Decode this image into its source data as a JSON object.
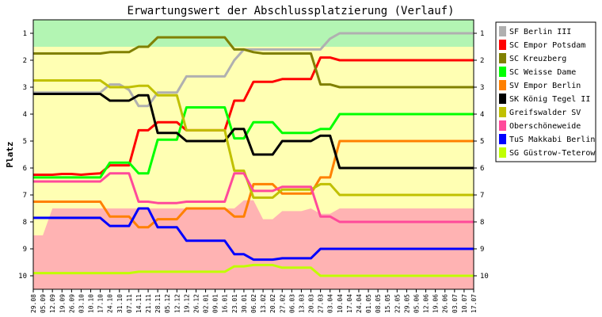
{
  "chart_data": {
    "type": "line",
    "title": "Erwartungswert der Abschlussplatzierung (Verlauf)",
    "ylabel": "Platz",
    "yticks": [
      1,
      2,
      3,
      4,
      5,
      6,
      7,
      8,
      9,
      10
    ],
    "ylim": [
      10.5,
      0.5
    ],
    "y_inverted": true,
    "x": [
      "29.08",
      "05.09",
      "12.09",
      "19.09",
      "26.09",
      "03.10",
      "10.10",
      "17.10",
      "24.10",
      "31.10",
      "07.11",
      "14.11",
      "21.11",
      "28.11",
      "05.12",
      "12.12",
      "19.12",
      "26.12",
      "02.01",
      "09.01",
      "16.01",
      "23.01",
      "30.01",
      "06.02",
      "13.02",
      "20.02",
      "27.02",
      "06.03",
      "13.03",
      "20.03",
      "27.03",
      "03.04",
      "10.04",
      "17.04",
      "24.04",
      "01.05",
      "08.05",
      "15.05",
      "22.05",
      "29.05",
      "05.06",
      "12.06",
      "19.06",
      "26.06",
      "03.07",
      "10.07",
      "17.07"
    ],
    "background_bands": [
      {
        "name": "aufstieg",
        "color": "#b3f5b3"
      },
      {
        "name": "mitte",
        "color": "#ffffb3"
      },
      {
        "name": "abstieg",
        "color": "#ffb3b3"
      }
    ],
    "zone_boundaries": {
      "green_lower": [
        1.5,
        1.5,
        1.5,
        1.5,
        1.5,
        1.5,
        1.5,
        1.5,
        1.5,
        1.5,
        1.5,
        1.5,
        1.5,
        1.5,
        1.5,
        1.5,
        1.5,
        1.5,
        1.5,
        1.5,
        1.5,
        1.5,
        1.5,
        1.5,
        1.5,
        1.5,
        1.5,
        1.5,
        1.5,
        1.5,
        1.5,
        1.5,
        1.5,
        1.5,
        1.5,
        1.5,
        1.5,
        1.5,
        1.5,
        1.5,
        1.5,
        1.5,
        1.5,
        1.5,
        1.5,
        1.5,
        1.5
      ],
      "red_upper": [
        8.5,
        8.5,
        7.5,
        7.5,
        7.5,
        7.5,
        7.5,
        7.5,
        7.5,
        7.5,
        7.5,
        7.5,
        7.5,
        7.5,
        7.5,
        7.5,
        7.5,
        7.5,
        7.5,
        7.5,
        7.5,
        7.5,
        7.2,
        7.2,
        7.9,
        7.9,
        7.6,
        7.6,
        7.6,
        7.5,
        7.7,
        7.7,
        7.5,
        7.5,
        7.5,
        7.5,
        7.5,
        7.5,
        7.5,
        7.5,
        7.5,
        7.5,
        7.5,
        7.5,
        7.5,
        7.5,
        7.5
      ]
    },
    "series": [
      {
        "name": "SF Berlin III",
        "color": "#b0b0b0",
        "values": [
          3.2,
          3.2,
          3.2,
          3.2,
          3.2,
          3.2,
          3.2,
          3.2,
          2.9,
          2.9,
          3.1,
          3.7,
          3.7,
          3.2,
          3.2,
          3.2,
          2.6,
          2.6,
          2.6,
          2.6,
          2.6,
          2.0,
          1.6,
          1.6,
          1.6,
          1.6,
          1.6,
          1.6,
          1.6,
          1.6,
          1.6,
          1.2,
          1.0,
          1.0,
          1.0,
          1.0,
          1.0,
          1.0,
          1.0,
          1.0,
          1.0,
          1.0,
          1.0,
          1.0,
          1.0,
          1.0,
          1.0
        ]
      },
      {
        "name": "SC Empor Potsdam",
        "color": "#ff0000",
        "values": [
          6.25,
          6.25,
          6.25,
          6.22,
          6.22,
          6.25,
          6.22,
          6.2,
          5.9,
          5.9,
          5.9,
          4.6,
          4.6,
          4.3,
          4.3,
          4.3,
          4.6,
          4.6,
          4.6,
          4.6,
          4.6,
          3.5,
          3.5,
          2.8,
          2.8,
          2.8,
          2.7,
          2.7,
          2.7,
          2.7,
          1.9,
          1.9,
          2.0,
          2.0,
          2.0,
          2.0,
          2.0,
          2.0,
          2.0,
          2.0,
          2.0,
          2.0,
          2.0,
          2.0,
          2.0,
          2.0,
          2.0
        ]
      },
      {
        "name": "SC Kreuzberg",
        "color": "#808000",
        "values": [
          1.75,
          1.75,
          1.75,
          1.75,
          1.75,
          1.75,
          1.75,
          1.75,
          1.7,
          1.7,
          1.7,
          1.5,
          1.5,
          1.15,
          1.15,
          1.15,
          1.15,
          1.15,
          1.15,
          1.15,
          1.15,
          1.6,
          1.6,
          1.7,
          1.75,
          1.75,
          1.75,
          1.75,
          1.75,
          1.75,
          2.9,
          2.9,
          3.0,
          3.0,
          3.0,
          3.0,
          3.0,
          3.0,
          3.0,
          3.0,
          3.0,
          3.0,
          3.0,
          3.0,
          3.0,
          3.0,
          3.0
        ]
      },
      {
        "name": "SC Weisse Dame",
        "color": "#00ff00",
        "values": [
          6.35,
          6.35,
          6.35,
          6.35,
          6.35,
          6.35,
          6.35,
          6.35,
          5.8,
          5.8,
          5.8,
          6.2,
          6.2,
          4.95,
          4.95,
          4.95,
          3.75,
          3.75,
          3.75,
          3.75,
          3.75,
          4.9,
          4.9,
          4.3,
          4.3,
          4.3,
          4.7,
          4.7,
          4.7,
          4.7,
          4.55,
          4.55,
          4.0,
          4.0,
          4.0,
          4.0,
          4.0,
          4.0,
          4.0,
          4.0,
          4.0,
          4.0,
          4.0,
          4.0,
          4.0,
          4.0,
          4.0
        ]
      },
      {
        "name": "SV Empor Berlin",
        "color": "#ff8000",
        "values": [
          7.25,
          7.25,
          7.25,
          7.25,
          7.25,
          7.25,
          7.25,
          7.25,
          7.8,
          7.8,
          7.8,
          8.2,
          8.2,
          7.9,
          7.9,
          7.9,
          7.5,
          7.5,
          7.5,
          7.5,
          7.5,
          7.8,
          7.8,
          6.6,
          6.6,
          6.6,
          6.95,
          6.95,
          6.95,
          6.95,
          6.35,
          6.35,
          5.0,
          5.0,
          5.0,
          5.0,
          5.0,
          5.0,
          5.0,
          5.0,
          5.0,
          5.0,
          5.0,
          5.0,
          5.0,
          5.0,
          5.0
        ]
      },
      {
        "name": "SK König Tegel II",
        "color": "#000000",
        "values": [
          3.25,
          3.25,
          3.25,
          3.25,
          3.25,
          3.25,
          3.25,
          3.25,
          3.5,
          3.5,
          3.5,
          3.3,
          3.3,
          4.7,
          4.7,
          4.7,
          5.0,
          5.0,
          5.0,
          5.0,
          5.0,
          4.55,
          4.55,
          5.5,
          5.5,
          5.5,
          5.0,
          5.0,
          5.0,
          5.0,
          4.8,
          4.8,
          6.0,
          6.0,
          6.0,
          6.0,
          6.0,
          6.0,
          6.0,
          6.0,
          6.0,
          6.0,
          6.0,
          6.0,
          6.0,
          6.0,
          6.0
        ]
      },
      {
        "name": "Greifswalder SV",
        "color": "#c0c000",
        "values": [
          2.75,
          2.75,
          2.75,
          2.75,
          2.75,
          2.75,
          2.75,
          2.75,
          3.0,
          3.0,
          3.0,
          2.95,
          2.95,
          3.3,
          3.3,
          3.3,
          4.6,
          4.6,
          4.6,
          4.6,
          4.6,
          6.1,
          6.1,
          7.1,
          7.1,
          7.1,
          6.8,
          6.8,
          6.8,
          6.8,
          6.6,
          6.6,
          7.0,
          7.0,
          7.0,
          7.0,
          7.0,
          7.0,
          7.0,
          7.0,
          7.0,
          7.0,
          7.0,
          7.0,
          7.0,
          7.0,
          7.0
        ]
      },
      {
        "name": "Oberschöneweide",
        "color": "#ff4a9a",
        "values": [
          6.5,
          6.5,
          6.5,
          6.5,
          6.5,
          6.5,
          6.5,
          6.5,
          6.2,
          6.2,
          6.2,
          7.25,
          7.25,
          7.3,
          7.3,
          7.3,
          7.25,
          7.25,
          7.25,
          7.25,
          7.25,
          6.2,
          6.2,
          6.85,
          6.85,
          6.85,
          6.7,
          6.7,
          6.7,
          6.7,
          7.8,
          7.8,
          8.0,
          8.0,
          8.0,
          8.0,
          8.0,
          8.0,
          8.0,
          8.0,
          8.0,
          8.0,
          8.0,
          8.0,
          8.0,
          8.0,
          8.0
        ]
      },
      {
        "name": "TuS Makkabi Berlin",
        "color": "#0000ff",
        "values": [
          7.85,
          7.85,
          7.85,
          7.85,
          7.85,
          7.85,
          7.85,
          7.85,
          8.15,
          8.15,
          8.15,
          7.5,
          7.5,
          8.2,
          8.2,
          8.2,
          8.7,
          8.7,
          8.7,
          8.7,
          8.7,
          9.2,
          9.2,
          9.4,
          9.4,
          9.4,
          9.35,
          9.35,
          9.35,
          9.35,
          9.0,
          9.0,
          9.0,
          9.0,
          9.0,
          9.0,
          9.0,
          9.0,
          9.0,
          9.0,
          9.0,
          9.0,
          9.0,
          9.0,
          9.0,
          9.0,
          9.0
        ]
      },
      {
        "name": "SG Güstrow-Teterow",
        "color": "#c0ff00",
        "values": [
          9.9,
          9.9,
          9.9,
          9.9,
          9.9,
          9.9,
          9.9,
          9.9,
          9.9,
          9.9,
          9.9,
          9.85,
          9.85,
          9.85,
          9.85,
          9.85,
          9.85,
          9.85,
          9.85,
          9.85,
          9.85,
          9.65,
          9.65,
          9.6,
          9.6,
          9.6,
          9.7,
          9.7,
          9.7,
          9.7,
          10.0,
          10.0,
          10.0,
          10.0,
          10.0,
          10.0,
          10.0,
          10.0,
          10.0,
          10.0,
          10.0,
          10.0,
          10.0,
          10.0,
          10.0,
          10.0,
          10.0
        ]
      }
    ],
    "legend": "right",
    "grid": false
  }
}
